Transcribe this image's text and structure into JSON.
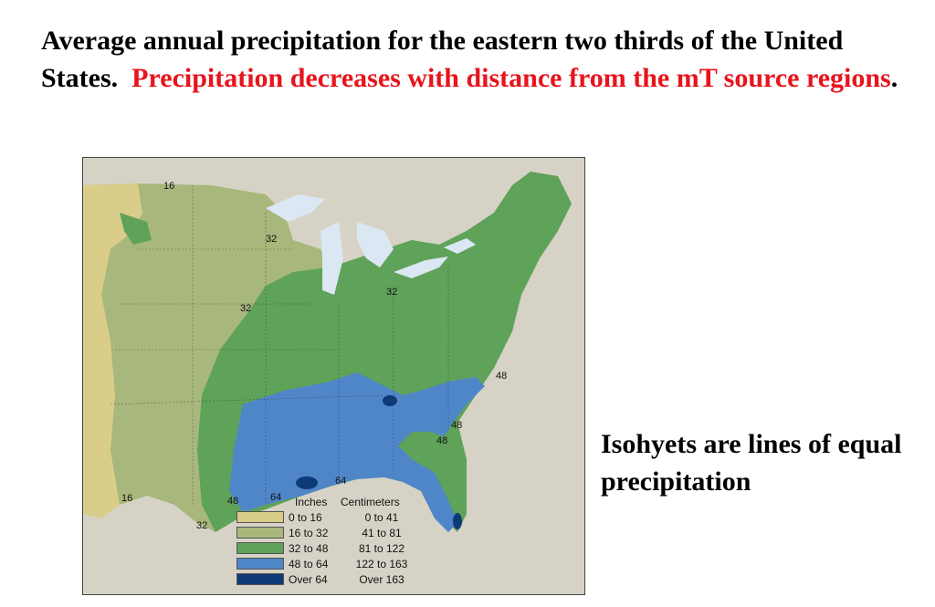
{
  "title": {
    "black": "Average annual precipitation for the eastern two thirds of the United States.",
    "red": "Precipitation decreases with distance from the mT source regions",
    "period": "."
  },
  "side_text": "Isohyets are lines of equal precipitation",
  "map": {
    "isohyet_labels": [
      "16",
      "32",
      "32",
      "32",
      "48",
      "48",
      "48",
      "64",
      "64",
      "16",
      "48",
      "32"
    ],
    "legend": {
      "header_inches": "Inches",
      "header_cm": "Centimeters",
      "rows": [
        {
          "inches": "0 to 16",
          "cm": "0 to 41",
          "color": "#d9cc88"
        },
        {
          "inches": "16 to 32",
          "cm": "41 to 81",
          "color": "#a9b87a"
        },
        {
          "inches": "32 to 48",
          "cm": "81 to 122",
          "color": "#5fa25a"
        },
        {
          "inches": "48 to 64",
          "cm": "122 to 163",
          "color": "#4f86c8"
        },
        {
          "inches": "Over 64",
          "cm": "Over 163",
          "color": "#0e3a78"
        }
      ]
    }
  }
}
